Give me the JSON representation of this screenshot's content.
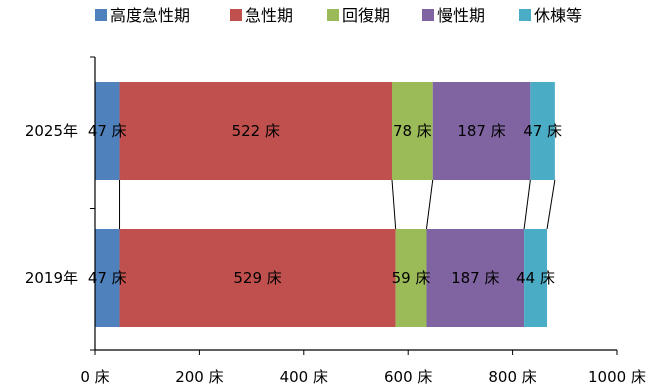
{
  "chart_data": {
    "type": "bar",
    "orientation": "horizontal",
    "stacked": true,
    "categories": [
      "2025年",
      "2019年"
    ],
    "series": [
      {
        "name": "高度急性期",
        "values": [
          47,
          47
        ],
        "labels": [
          "47 床",
          "47 床"
        ],
        "color": "#4f81bd"
      },
      {
        "name": "急性期",
        "values": [
          522,
          529
        ],
        "labels": [
          "522 床",
          "529 床"
        ],
        "color": "#c0504d"
      },
      {
        "name": "回復期",
        "values": [
          78,
          59
        ],
        "labels": [
          "78 床",
          "59 床"
        ],
        "color": "#9bbb59"
      },
      {
        "name": "慢性期",
        "values": [
          187,
          187
        ],
        "labels": [
          "187 床",
          "187 床"
        ],
        "color": "#8064a2"
      },
      {
        "name": "休棟等",
        "values": [
          47,
          44
        ],
        "labels": [
          "47 床",
          "44 床"
        ],
        "color": "#4bacc6"
      }
    ],
    "xlim": [
      0,
      1000
    ],
    "xticks": [
      0,
      200,
      400,
      600,
      800,
      1000
    ],
    "xtick_labels": [
      "0 床",
      "200 床",
      "400 床",
      "600 床",
      "800 床",
      "1000 床"
    ],
    "legend_position": "top",
    "grid": false,
    "series_lines": true
  }
}
